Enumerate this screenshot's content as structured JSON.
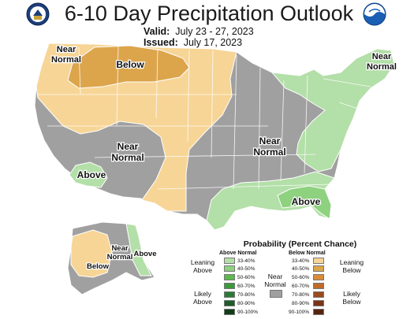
{
  "title": "6-10 Day Precipitation Outlook",
  "valid_label": "Valid:",
  "valid_value": "July 23 - 27, 2023",
  "issued_label": "Issued:",
  "issued_value": "July 17, 2023",
  "logos": {
    "left": "department-of-commerce-seal",
    "right": "noaa-logo"
  },
  "map": {
    "labels": {
      "nw_near_normal_1": "Near",
      "nw_near_normal_2": "Normal",
      "below": "Below",
      "center_near_normal_1": "Near",
      "center_near_normal_2": "Normal",
      "above_sw": "Above",
      "east_near_normal_1": "Near",
      "east_near_normal_2": "Normal",
      "ne_near_normal_1": "Near",
      "ne_near_normal_2": "Normal",
      "above_se": "Above",
      "ak_near_normal_1": "Near",
      "ak_near_normal_2": "Normal",
      "ak_above": "Above",
      "ak_below": "Below"
    },
    "colors": {
      "near_normal": "#a0a0a0",
      "above_33_40": "#b3dfa8",
      "above_40_50": "#8ed17f",
      "below_33_40": "#f7d596",
      "below_40_50": "#dca54c",
      "border": "#ffffff"
    }
  },
  "legend": {
    "title": "Probability (Percent Chance)",
    "above_normal_header": "Above Normal",
    "below_normal_header": "Below Normal",
    "leaning_above": "Leaning Above",
    "likely_above": "Likely Above",
    "near_normal": "Near Normal",
    "leaning_below": "Leaning Below",
    "likely_below": "Likely Below",
    "above_bins": [
      {
        "label": "33-40%",
        "color": "#b5dfa8"
      },
      {
        "label": "40-50%",
        "color": "#8ed17f"
      },
      {
        "label": "50-60%",
        "color": "#5cb94c"
      },
      {
        "label": "60-70%",
        "color": "#3b9a3b"
      },
      {
        "label": "70-80%",
        "color": "#2b7a35"
      },
      {
        "label": "80-90%",
        "color": "#1e5c28"
      },
      {
        "label": "90-100%",
        "color": "#123d18"
      }
    ],
    "below_bins": [
      {
        "label": "33-40%",
        "color": "#f7d596"
      },
      {
        "label": "40-50%",
        "color": "#dca54c"
      },
      {
        "label": "50-60%",
        "color": "#d98b3a"
      },
      {
        "label": "60-70%",
        "color": "#c06a2a"
      },
      {
        "label": "70-80%",
        "color": "#9b4a1e"
      },
      {
        "label": "80-90%",
        "color": "#7a3418"
      },
      {
        "label": "90-100%",
        "color": "#55240f"
      }
    ],
    "near_normal_color": "#a0a0a0"
  }
}
